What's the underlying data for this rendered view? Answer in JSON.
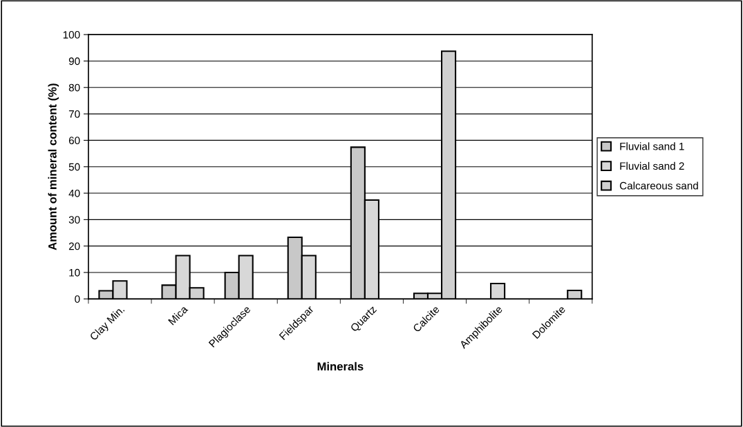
{
  "chart_data": {
    "type": "bar",
    "xlabel": "Minerals",
    "ylabel": "Amount of mineral content (%)",
    "categories": [
      "Clay Min.",
      "Mica",
      "Plagioclase",
      "Fieldspar",
      "Quartz",
      "Calcite",
      "Amphibolite",
      "Dolomite"
    ],
    "series": [
      {
        "name": "Fluvial sand 1",
        "color": "#c8c8c8",
        "values": [
          3.1,
          5.2,
          10,
          23.3,
          57.4,
          2.1,
          null,
          null
        ]
      },
      {
        "name": "Fluvial sand 2",
        "color": "#d8d8d8",
        "values": [
          6.8,
          16.4,
          16.4,
          16.4,
          37.4,
          2.1,
          5.8,
          null
        ]
      },
      {
        "name": "Calcareous sand",
        "color": "#d0d0d0",
        "values": [
          null,
          4.2,
          null,
          null,
          null,
          93.7,
          null,
          3.2
        ]
      }
    ],
    "ylim": [
      0,
      100
    ],
    "yticks": [
      0,
      10,
      20,
      30,
      40,
      50,
      60,
      70,
      80,
      90,
      100
    ],
    "grid": "y",
    "legend": "right"
  }
}
